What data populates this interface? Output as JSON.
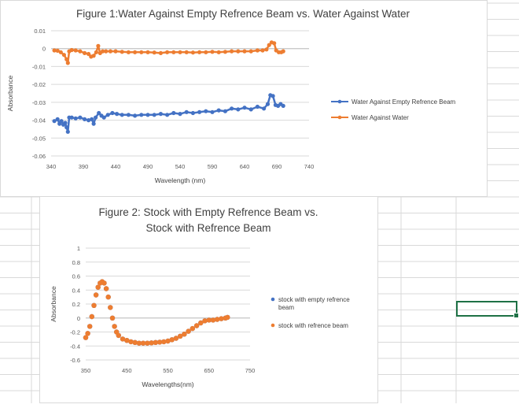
{
  "colors": {
    "series_blue": "#4472C4",
    "series_orange": "#ED7D31",
    "gridline": "#d9d9d9",
    "axis_text": "#595959",
    "title_text": "#404040",
    "selection": "#1e7145"
  },
  "chart_data": [
    {
      "type": "line",
      "title": "Figure 1:Water Against Empty Refrence Beam vs. Water Against Water",
      "xlabel": "Wavelength (nm)",
      "ylabel": "Absorbance",
      "xlim": [
        340,
        740
      ],
      "ylim": [
        -0.06,
        0.01
      ],
      "x_ticks": [
        "340",
        "390",
        "440",
        "490",
        "540",
        "590",
        "640",
        "690",
        "740"
      ],
      "y_ticks": [
        "0.01",
        "0",
        "-0.01",
        "-0.02",
        "-0.03",
        "-0.04",
        "-0.05",
        "-0.06"
      ],
      "grid": true,
      "legend_position": "right",
      "series": [
        {
          "name": "Water Against Empty Refrence Beam",
          "color": "#4472C4",
          "points": [
            [
              345,
              -0.0405
            ],
            [
              350,
              -0.0395
            ],
            [
              353,
              -0.042
            ],
            [
              356,
              -0.0405
            ],
            [
              359,
              -0.0425
            ],
            [
              362,
              -0.0415
            ],
            [
              364,
              -0.044
            ],
            [
              366,
              -0.0465
            ],
            [
              368,
              -0.0385
            ],
            [
              372,
              -0.0385
            ],
            [
              378,
              -0.039
            ],
            [
              385,
              -0.0385
            ],
            [
              392,
              -0.0395
            ],
            [
              398,
              -0.04
            ],
            [
              403,
              -0.0395
            ],
            [
              406,
              -0.042
            ],
            [
              409,
              -0.0385
            ],
            [
              414,
              -0.036
            ],
            [
              418,
              -0.0375
            ],
            [
              422,
              -0.0385
            ],
            [
              428,
              -0.037
            ],
            [
              435,
              -0.036
            ],
            [
              442,
              -0.0365
            ],
            [
              450,
              -0.037
            ],
            [
              460,
              -0.037
            ],
            [
              470,
              -0.0375
            ],
            [
              480,
              -0.037
            ],
            [
              490,
              -0.037
            ],
            [
              500,
              -0.037
            ],
            [
              510,
              -0.0365
            ],
            [
              520,
              -0.037
            ],
            [
              530,
              -0.036
            ],
            [
              540,
              -0.0365
            ],
            [
              550,
              -0.0355
            ],
            [
              560,
              -0.036
            ],
            [
              570,
              -0.0355
            ],
            [
              580,
              -0.035
            ],
            [
              590,
              -0.0355
            ],
            [
              600,
              -0.0345
            ],
            [
              610,
              -0.035
            ],
            [
              620,
              -0.0335
            ],
            [
              630,
              -0.034
            ],
            [
              640,
              -0.033
            ],
            [
              650,
              -0.034
            ],
            [
              660,
              -0.0325
            ],
            [
              670,
              -0.0335
            ],
            [
              676,
              -0.031
            ],
            [
              680,
              -0.026
            ],
            [
              684,
              -0.0265
            ],
            [
              688,
              -0.0315
            ],
            [
              692,
              -0.032
            ],
            [
              696,
              -0.031
            ],
            [
              700,
              -0.032
            ]
          ]
        },
        {
          "name": "Water Against Water",
          "color": "#ED7D31",
          "points": [
            [
              345,
              -0.001
            ],
            [
              350,
              -0.0012
            ],
            [
              355,
              -0.002
            ],
            [
              360,
              -0.0035
            ],
            [
              364,
              -0.006
            ],
            [
              366,
              -0.008
            ],
            [
              368,
              -0.0015
            ],
            [
              372,
              -0.0008
            ],
            [
              378,
              -0.001
            ],
            [
              385,
              -0.0015
            ],
            [
              392,
              -0.0025
            ],
            [
              398,
              -0.003
            ],
            [
              402,
              -0.0045
            ],
            [
              406,
              -0.004
            ],
            [
              410,
              -0.002
            ],
            [
              413,
              0.0015
            ],
            [
              416,
              -0.0025
            ],
            [
              420,
              -0.0015
            ],
            [
              425,
              -0.0015
            ],
            [
              432,
              -0.0015
            ],
            [
              440,
              -0.0015
            ],
            [
              450,
              -0.0018
            ],
            [
              460,
              -0.002
            ],
            [
              470,
              -0.002
            ],
            [
              480,
              -0.002
            ],
            [
              490,
              -0.002
            ],
            [
              500,
              -0.0022
            ],
            [
              510,
              -0.0025
            ],
            [
              520,
              -0.002
            ],
            [
              530,
              -0.002
            ],
            [
              540,
              -0.002
            ],
            [
              550,
              -0.002
            ],
            [
              560,
              -0.0022
            ],
            [
              570,
              -0.002
            ],
            [
              580,
              -0.002
            ],
            [
              590,
              -0.0018
            ],
            [
              600,
              -0.002
            ],
            [
              610,
              -0.0018
            ],
            [
              620,
              -0.0015
            ],
            [
              630,
              -0.0015
            ],
            [
              640,
              -0.0015
            ],
            [
              650,
              -0.0015
            ],
            [
              660,
              -0.001
            ],
            [
              668,
              -0.001
            ],
            [
              674,
              -0.0005
            ],
            [
              678,
              0.002
            ],
            [
              682,
              0.0035
            ],
            [
              686,
              0.003
            ],
            [
              689,
              -0.001
            ],
            [
              693,
              -0.002
            ],
            [
              697,
              -0.002
            ],
            [
              700,
              -0.0015
            ]
          ]
        }
      ]
    },
    {
      "type": "scatter",
      "title": "Figure 2: Stock with Empty Refrence Beam vs. Stock with Refrence Beam",
      "title_lines": [
        "Figure 2: Stock with Empty Refrence Beam vs.",
        "Stock with Refrence Beam"
      ],
      "xlabel": "Wavelengths(nm)",
      "ylabel": "Absorbance",
      "xlim": [
        350,
        750
      ],
      "ylim": [
        -0.6,
        1
      ],
      "x_ticks": [
        "350",
        "450",
        "550",
        "650",
        "750"
      ],
      "y_ticks": [
        "1",
        "0.8",
        "0.6",
        "0.4",
        "0.2",
        "0",
        "-0.2",
        "-0.4",
        "-0.6"
      ],
      "grid": true,
      "legend_position": "right",
      "series": [
        {
          "name": "stock with empty refrence beam",
          "legend_lines": [
            "stock with empty refrence",
            "beam"
          ],
          "color": "#4472C4",
          "points": [
            [
              350,
              -0.28
            ],
            [
              355,
              -0.22
            ],
            [
              360,
              -0.12
            ],
            [
              365,
              0.02
            ],
            [
              370,
              0.18
            ],
            [
              375,
              0.33
            ],
            [
              380,
              0.44
            ],
            [
              385,
              0.5
            ],
            [
              390,
              0.52
            ],
            [
              395,
              0.5
            ],
            [
              400,
              0.42
            ],
            [
              405,
              0.3
            ],
            [
              410,
              0.15
            ],
            [
              415,
              0.0
            ],
            [
              420,
              -0.12
            ],
            [
              425,
              -0.2
            ],
            [
              430,
              -0.25
            ],
            [
              440,
              -0.3
            ],
            [
              450,
              -0.32
            ],
            [
              460,
              -0.34
            ],
            [
              470,
              -0.35
            ],
            [
              480,
              -0.36
            ],
            [
              490,
              -0.36
            ],
            [
              500,
              -0.36
            ],
            [
              510,
              -0.355
            ],
            [
              520,
              -0.35
            ],
            [
              530,
              -0.345
            ],
            [
              540,
              -0.34
            ],
            [
              550,
              -0.33
            ],
            [
              560,
              -0.31
            ],
            [
              570,
              -0.29
            ],
            [
              580,
              -0.26
            ],
            [
              590,
              -0.23
            ],
            [
              600,
              -0.19
            ],
            [
              610,
              -0.15
            ],
            [
              620,
              -0.11
            ],
            [
              630,
              -0.07
            ],
            [
              640,
              -0.04
            ],
            [
              650,
              -0.03
            ],
            [
              660,
              -0.03
            ],
            [
              670,
              -0.02
            ],
            [
              680,
              -0.01
            ],
            [
              690,
              0.0
            ],
            [
              695,
              0.01
            ]
          ]
        },
        {
          "name": "stock with refrence beam",
          "legend_lines": [
            "stock with refrence beam"
          ],
          "color": "#ED7D31",
          "points": [
            [
              350,
              -0.28
            ],
            [
              355,
              -0.22
            ],
            [
              360,
              -0.12
            ],
            [
              365,
              0.02
            ],
            [
              370,
              0.18
            ],
            [
              375,
              0.33
            ],
            [
              380,
              0.44
            ],
            [
              385,
              0.5
            ],
            [
              390,
              0.52
            ],
            [
              395,
              0.5
            ],
            [
              400,
              0.42
            ],
            [
              405,
              0.3
            ],
            [
              410,
              0.15
            ],
            [
              415,
              0.0
            ],
            [
              420,
              -0.12
            ],
            [
              425,
              -0.2
            ],
            [
              430,
              -0.25
            ],
            [
              440,
              -0.3
            ],
            [
              450,
              -0.32
            ],
            [
              460,
              -0.34
            ],
            [
              470,
              -0.35
            ],
            [
              480,
              -0.36
            ],
            [
              490,
              -0.36
            ],
            [
              500,
              -0.36
            ],
            [
              510,
              -0.355
            ],
            [
              520,
              -0.35
            ],
            [
              530,
              -0.345
            ],
            [
              540,
              -0.34
            ],
            [
              550,
              -0.33
            ],
            [
              560,
              -0.31
            ],
            [
              570,
              -0.29
            ],
            [
              580,
              -0.26
            ],
            [
              590,
              -0.23
            ],
            [
              600,
              -0.19
            ],
            [
              610,
              -0.15
            ],
            [
              620,
              -0.11
            ],
            [
              630,
              -0.07
            ],
            [
              640,
              -0.04
            ],
            [
              650,
              -0.03
            ],
            [
              660,
              -0.03
            ],
            [
              670,
              -0.02
            ],
            [
              680,
              -0.01
            ],
            [
              690,
              0.0
            ],
            [
              695,
              0.01
            ]
          ]
        }
      ]
    }
  ]
}
